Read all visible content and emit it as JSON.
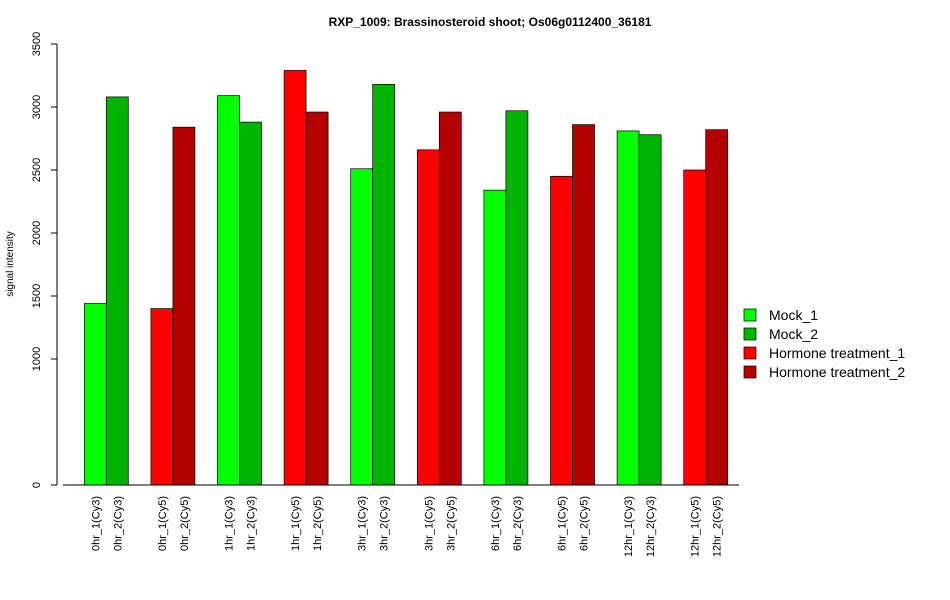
{
  "chart_data": {
    "type": "bar",
    "title": "RXP_1009: Brassinosteroid shoot; Os06g0112400_36181",
    "ylabel": "signal intensity",
    "xlabel": "",
    "ylim": [
      0,
      3500
    ],
    "yticks": [
      0,
      1000,
      1500,
      2000,
      2500,
      3000,
      3500
    ],
    "grid": false,
    "legend_position": "right",
    "categories": [
      "0hr_1(Cy3)",
      "0hr_2(Cy3)",
      "0hr_1(Cy5)",
      "0hr_2(Cy5)",
      "1hr_1(Cy3)",
      "1hr_2(Cy3)",
      "1hr_1(Cy5)",
      "1hr_2(Cy5)",
      "3hr_1(Cy3)",
      "3hr_2(Cy3)",
      "3hr_1(Cy5)",
      "3hr_2(Cy5)",
      "6hr_1(Cy3)",
      "6hr_2(Cy3)",
      "6hr_1(Cy5)",
      "6hr_2(Cy5)",
      "12hr_1(Cy3)",
      "12hr_2(Cy3)",
      "12hr_1(Cy5)",
      "12hr_2(Cy5)"
    ],
    "values": [
      1440,
      3080,
      1400,
      2840,
      3090,
      2880,
      3290,
      2960,
      2510,
      3180,
      2660,
      2960,
      2340,
      2970,
      2450,
      2860,
      2810,
      2780,
      2500,
      2820
    ],
    "bar_series": [
      "Mock_1",
      "Mock_2",
      "Hormone treatment_1",
      "Hormone treatment_2",
      "Mock_1",
      "Mock_2",
      "Hormone treatment_1",
      "Hormone treatment_2",
      "Mock_1",
      "Mock_2",
      "Hormone treatment_1",
      "Hormone treatment_2",
      "Mock_1",
      "Mock_2",
      "Hormone treatment_1",
      "Hormone treatment_2",
      "Mock_1",
      "Mock_2",
      "Hormone treatment_1",
      "Hormone treatment_2"
    ],
    "series": [
      {
        "name": "Mock_1",
        "color": "#00ff00"
      },
      {
        "name": "Mock_2",
        "color": "#00b300"
      },
      {
        "name": "Hormone treatment_1",
        "color": "#ff0000"
      },
      {
        "name": "Hormone treatment_2",
        "color": "#b30000"
      }
    ]
  }
}
